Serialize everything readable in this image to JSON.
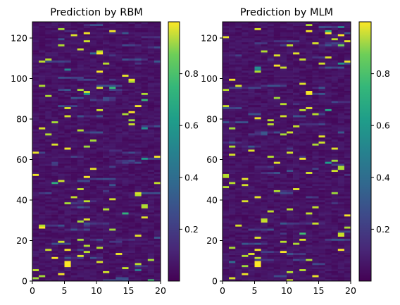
{
  "chart_data": [
    {
      "type": "heatmap",
      "title": "Prediction by RBM",
      "xlabel": "",
      "ylabel": "",
      "xlim": [
        0,
        20
      ],
      "ylim": [
        0,
        128
      ],
      "x_ticks": [
        0,
        5,
        10,
        15,
        20
      ],
      "y_ticks": [
        0,
        20,
        40,
        60,
        80,
        100,
        120
      ],
      "colorbar": {
        "colormap": "viridis",
        "range": [
          0.0,
          1.0
        ],
        "ticks": [
          0.2,
          0.4,
          0.6,
          0.8
        ]
      },
      "grid": false,
      "description_of_cells": "20 columns x 128 rows of values; mostly near 0 (dark purple) with scattered high values (yellow) in short bursts"
    },
    {
      "type": "heatmap",
      "title": "Prediction by MLM",
      "xlabel": "",
      "ylabel": "",
      "xlim": [
        0,
        20
      ],
      "ylim": [
        0,
        128
      ],
      "x_ticks": [
        0,
        5,
        10,
        15,
        20
      ],
      "y_ticks": [
        0,
        20,
        40,
        60,
        80,
        100,
        120
      ],
      "colorbar": {
        "colormap": "viridis",
        "range": [
          0.0,
          1.0
        ],
        "ticks": [
          0.2,
          0.4,
          0.6,
          0.8
        ]
      },
      "grid": false
    }
  ],
  "colors": {
    "viridis_low": "#440154",
    "viridis_mid": "#21918c",
    "viridis_high": "#fde725"
  }
}
